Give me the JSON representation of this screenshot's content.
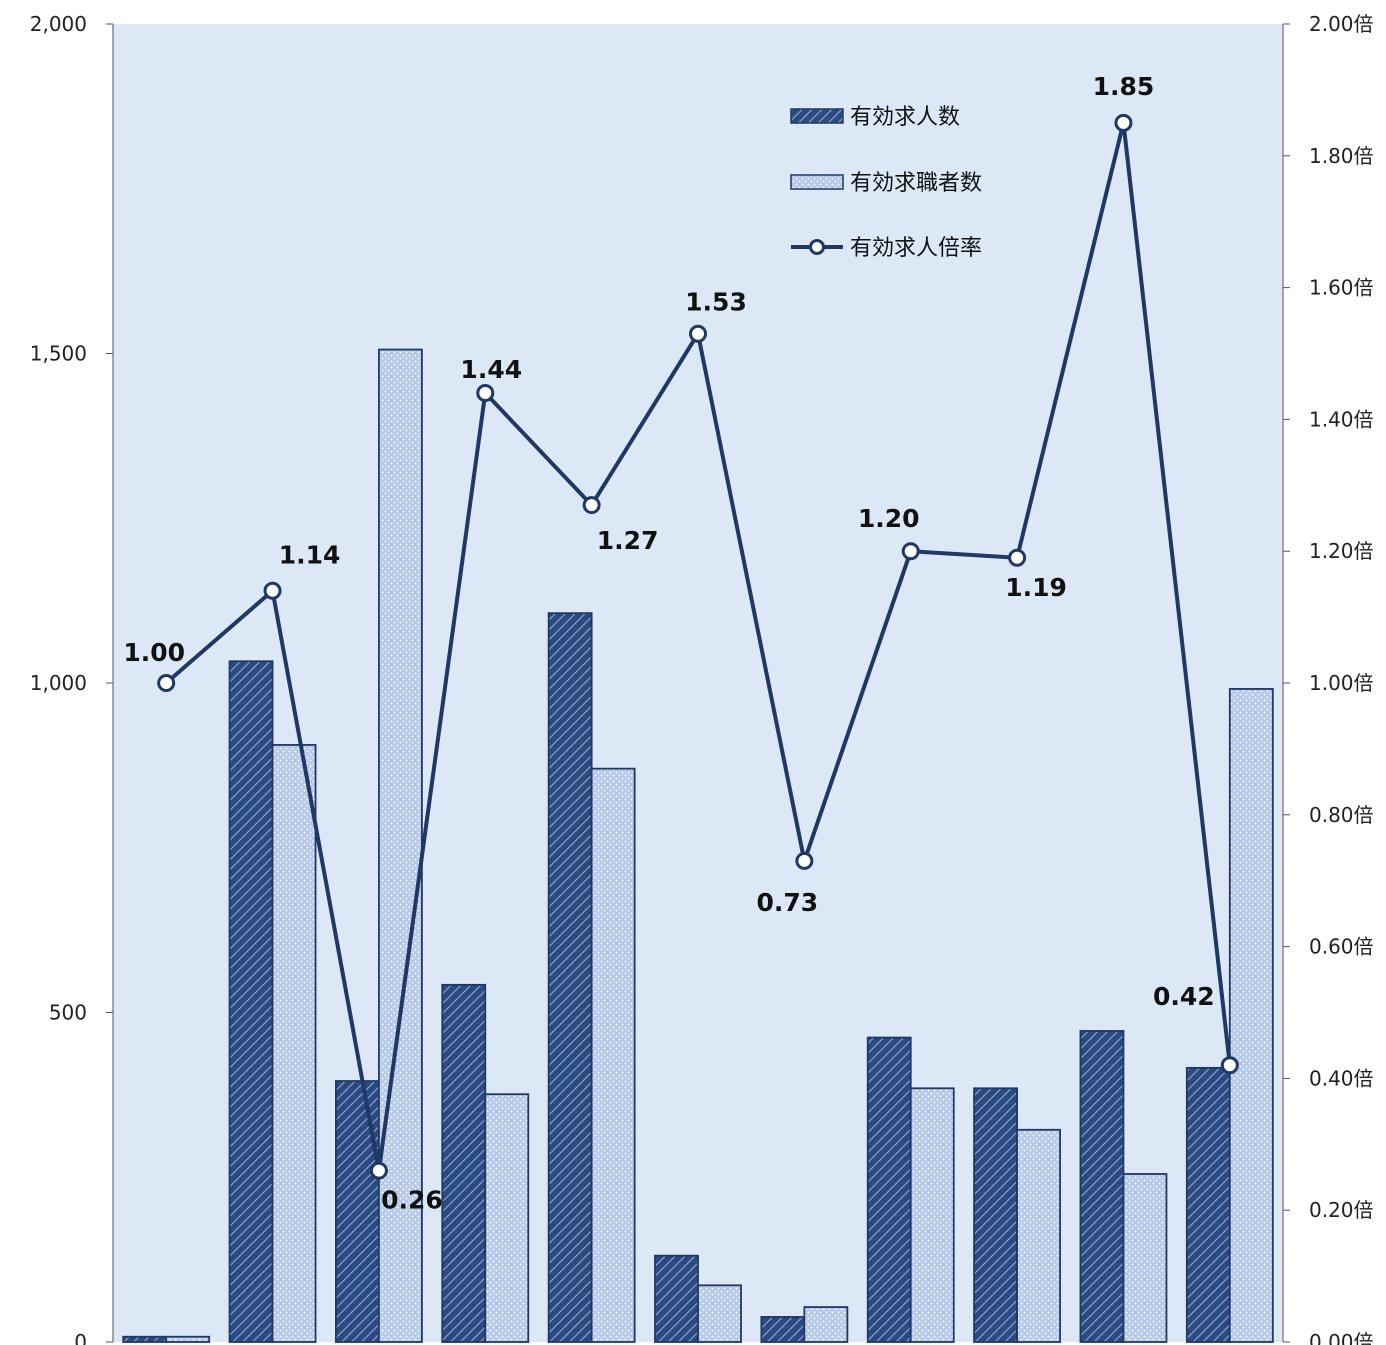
{
  "chart_data": {
    "type": "bar",
    "categories": [
      "",
      "",
      "",
      "",
      "",
      "",
      "",
      "",
      "",
      "",
      ""
    ],
    "series": [
      {
        "name": "有効求人数",
        "type": "bar",
        "axis": "left",
        "values": [
          8,
          1033,
          396,
          542,
          1106,
          131,
          38,
          462,
          385,
          472,
          416
        ]
      },
      {
        "name": "有効求職者数",
        "type": "bar",
        "axis": "left",
        "values": [
          8,
          906,
          1506,
          376,
          870,
          86,
          53,
          385,
          322,
          255,
          991
        ]
      },
      {
        "name": "有効求人倍率",
        "type": "line",
        "axis": "right",
        "values": [
          1.0,
          1.14,
          0.26,
          1.44,
          1.27,
          1.53,
          0.73,
          1.2,
          1.19,
          1.85,
          0.42
        ],
        "labels": [
          "1.00",
          "1.14",
          "0.26",
          "1.44",
          "1.27",
          "1.53",
          "0.73",
          "1.20",
          "1.19",
          "1.85",
          "0.42"
        ]
      }
    ],
    "y_left": {
      "min": 0,
      "max": 2000,
      "ticks": [
        0,
        500,
        1000,
        1500,
        2000
      ],
      "tick_labels": [
        "0",
        "500",
        "1,000",
        "1,500",
        "2,000"
      ]
    },
    "y_right": {
      "min": 0,
      "max": 2.0,
      "ticks": [
        0,
        0.2,
        0.4,
        0.6,
        0.8,
        1.0,
        1.2,
        1.4,
        1.6,
        1.8,
        2.0
      ],
      "tick_labels": [
        "0.00倍",
        "0.20倍",
        "0.40倍",
        "0.60倍",
        "0.80倍",
        "1.00倍",
        "1.20倍",
        "1.40倍",
        "1.60倍",
        "1.80倍",
        "2.00倍"
      ]
    },
    "legend": {
      "position": "top-right",
      "items": [
        "有効求人数",
        "有効求職者数",
        "有効求人倍率"
      ]
    },
    "colors": {
      "bar1_fill": "#2b4a80",
      "bar1_stripe": "#8ea9d6",
      "bar2_fill": "#b7caea",
      "bar2_dot": "#ffffff",
      "line": "#1f3864",
      "plot_bg": "#dce8f6",
      "border": "#1f3864"
    },
    "grid": false
  }
}
